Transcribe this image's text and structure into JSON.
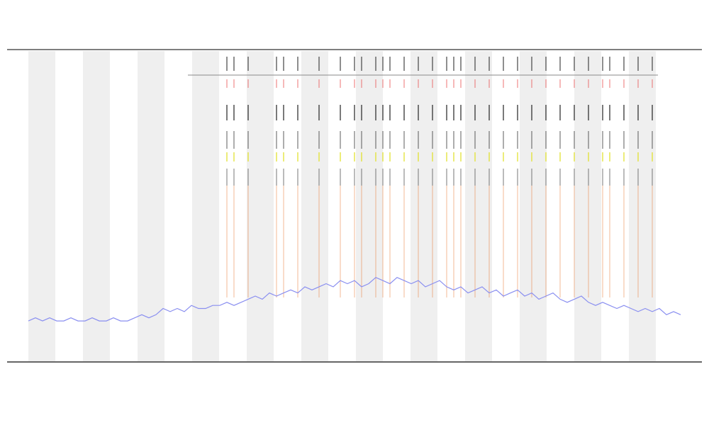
{
  "chart_data": {
    "type": "line",
    "x": [
      0,
      1,
      2,
      3,
      4,
      5,
      6,
      7,
      8,
      9,
      10,
      11,
      12,
      13,
      14,
      15,
      16,
      17,
      18,
      19,
      20,
      21,
      22,
      23,
      24,
      25,
      26,
      27,
      28,
      29,
      30,
      31,
      32,
      33,
      34,
      35,
      36,
      37,
      38,
      39,
      40,
      41,
      42,
      43,
      44,
      45,
      46,
      47,
      48,
      49,
      50,
      51,
      52,
      53,
      54,
      55,
      56,
      57,
      58,
      59,
      60,
      61,
      62,
      63,
      64,
      65,
      66,
      67,
      68,
      69,
      70,
      71,
      72,
      73,
      74,
      75,
      76,
      77,
      78,
      79,
      80,
      81,
      82,
      83,
      84,
      85,
      86,
      87,
      88,
      89,
      90,
      91,
      92
    ],
    "series": [
      {
        "color": "#8a8ff0",
        "values": [
          13,
          14,
          13,
          14,
          13,
          13,
          14,
          13,
          13,
          14,
          13,
          13,
          14,
          13,
          13,
          14,
          15,
          14,
          15,
          17,
          16,
          17,
          16,
          18,
          17,
          17,
          18,
          18,
          19,
          18,
          19,
          20,
          21,
          20,
          22,
          21,
          22,
          23,
          22,
          24,
          23,
          24,
          25,
          24,
          26,
          25,
          26,
          24,
          25,
          27,
          26,
          25,
          27,
          26,
          25,
          26,
          24,
          25,
          26,
          24,
          23,
          24,
          22,
          23,
          24,
          22,
          23,
          21,
          22,
          23,
          21,
          22,
          20,
          21,
          22,
          20,
          19,
          20,
          21,
          19,
          18,
          19,
          18,
          17,
          18,
          17,
          16,
          17,
          16,
          17,
          15,
          16,
          15
        ]
      }
    ],
    "events": [
      28,
      29,
      31,
      35,
      36,
      38,
      41,
      44,
      46,
      47,
      49,
      50,
      51,
      53,
      55,
      57,
      59,
      60,
      61,
      63,
      65,
      67,
      69,
      71,
      73,
      75,
      77,
      79,
      81,
      82,
      84,
      86,
      88
    ],
    "event_color": "#e8722a",
    "xlim": [
      0,
      92
    ],
    "ylim": [
      0,
      100
    ]
  }
}
